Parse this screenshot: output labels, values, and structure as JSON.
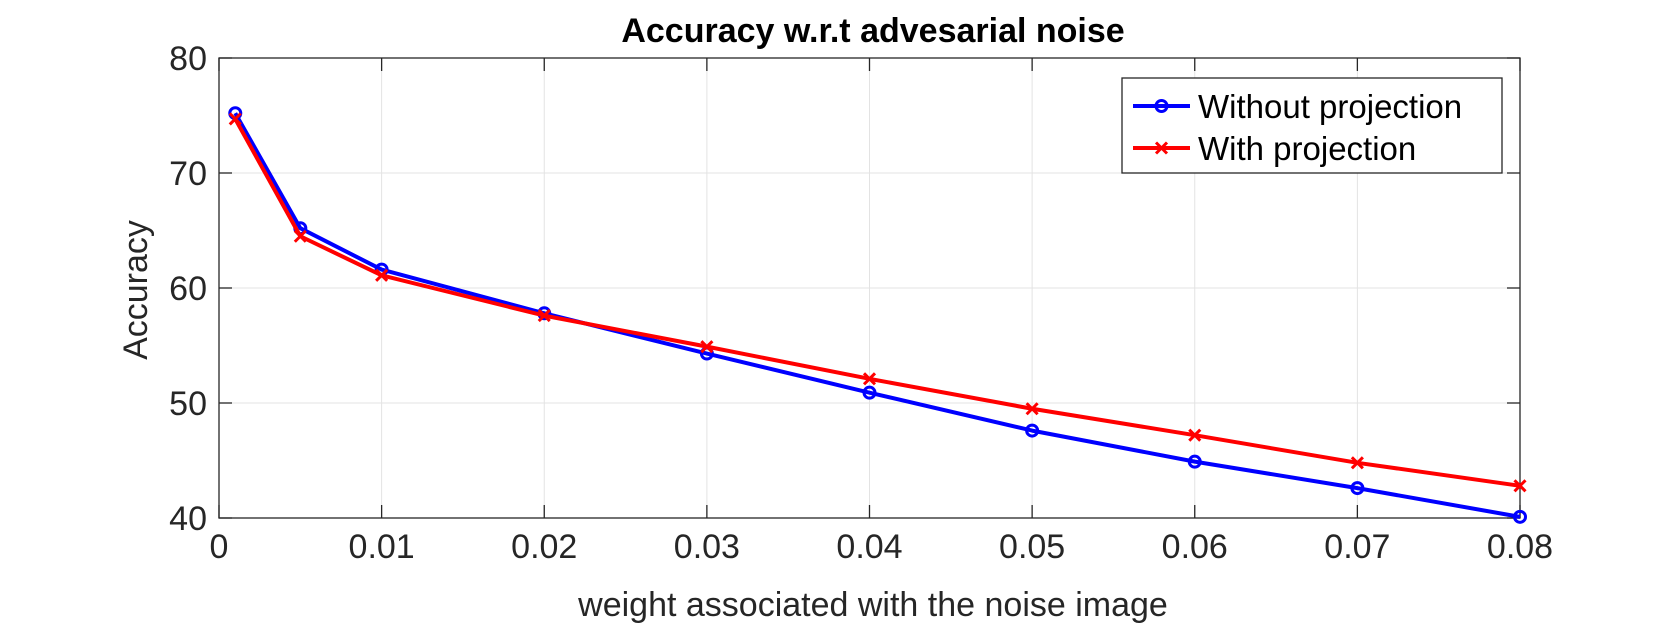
{
  "chart_data": {
    "type": "line",
    "title": "Accuracy w.r.t advesarial noise",
    "xlabel": "weight associated with the noise image",
    "ylabel": "Accuracy",
    "xlim": [
      0,
      0.08
    ],
    "ylim": [
      40,
      80
    ],
    "xticks": [
      0,
      0.01,
      0.02,
      0.03,
      0.04,
      0.05,
      0.06,
      0.07,
      0.08
    ],
    "xtick_labels": [
      "0",
      "0.01",
      "0.02",
      "0.03",
      "0.04",
      "0.05",
      "0.06",
      "0.07",
      "0.08"
    ],
    "yticks": [
      40,
      50,
      60,
      70,
      80
    ],
    "ytick_labels": [
      "40",
      "50",
      "60",
      "70",
      "80"
    ],
    "grid": true,
    "legend_position": "top-right",
    "x": [
      0.001,
      0.005,
      0.01,
      0.02,
      0.03,
      0.04,
      0.05,
      0.06,
      0.07,
      0.08
    ],
    "series": [
      {
        "name": "Without projection",
        "color": "#0000ff",
        "marker": "circle",
        "values": [
          75.2,
          65.2,
          61.6,
          57.8,
          54.3,
          50.9,
          47.6,
          44.9,
          42.6,
          40.1
        ]
      },
      {
        "name": "With projection",
        "color": "#ff0000",
        "marker": "x",
        "values": [
          74.7,
          64.5,
          61.1,
          57.6,
          54.9,
          52.1,
          49.5,
          47.2,
          44.8,
          42.8
        ]
      }
    ]
  }
}
